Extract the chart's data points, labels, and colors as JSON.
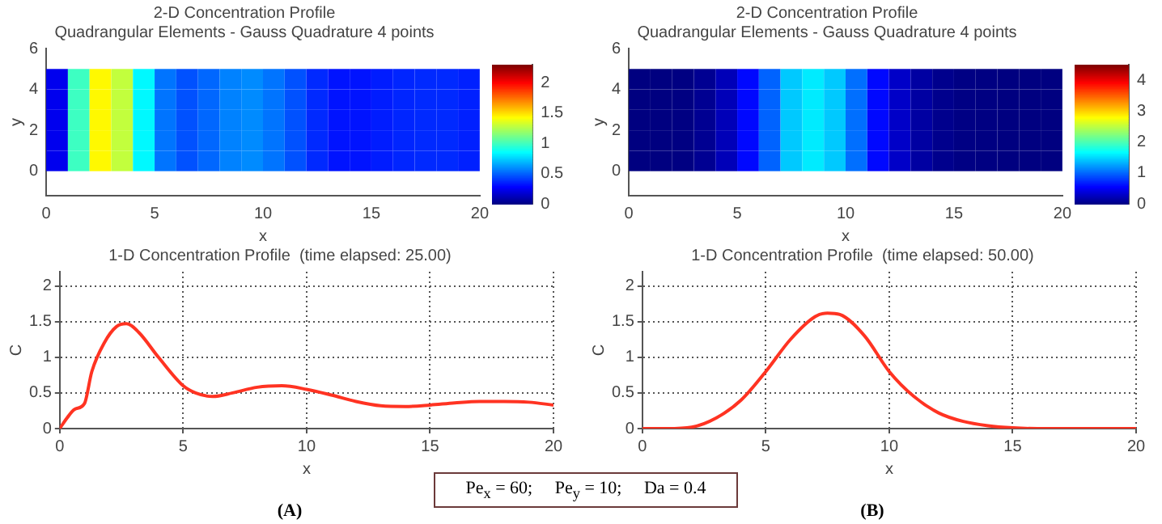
{
  "chart_data": [
    {
      "type": "heatmap",
      "title": "2-D Concentration Profile",
      "subtitle": "Quadrangular Elements - Gauss Quadrature 4 points",
      "xlabel": "x",
      "ylabel": "y",
      "x": [
        0.5,
        1.5,
        2.5,
        3.5,
        4.5,
        5.5,
        6.5,
        7.5,
        8.5,
        9.5,
        10.5,
        11.5,
        12.5,
        13.5,
        14.5,
        15.5,
        16.5,
        17.5,
        18.5,
        19.5
      ],
      "y": [
        4.5,
        3.5,
        2.5,
        1.5,
        0.5
      ],
      "cells": [
        [
          0.25,
          1.0,
          1.45,
          1.3,
          0.85,
          0.55,
          0.47,
          0.52,
          0.58,
          0.6,
          0.55,
          0.47,
          0.38,
          0.33,
          0.33,
          0.35,
          0.37,
          0.38,
          0.38,
          0.36
        ],
        [
          0.25,
          1.0,
          1.45,
          1.3,
          0.85,
          0.55,
          0.47,
          0.52,
          0.58,
          0.6,
          0.55,
          0.47,
          0.38,
          0.33,
          0.33,
          0.35,
          0.37,
          0.38,
          0.38,
          0.36
        ],
        [
          0.25,
          1.0,
          1.45,
          1.3,
          0.85,
          0.55,
          0.47,
          0.52,
          0.58,
          0.6,
          0.55,
          0.47,
          0.38,
          0.33,
          0.33,
          0.35,
          0.37,
          0.38,
          0.38,
          0.36
        ],
        [
          0.25,
          1.0,
          1.45,
          1.3,
          0.85,
          0.55,
          0.47,
          0.52,
          0.58,
          0.6,
          0.55,
          0.47,
          0.38,
          0.33,
          0.33,
          0.35,
          0.37,
          0.38,
          0.38,
          0.36
        ],
        [
          0.25,
          1.0,
          1.45,
          1.3,
          0.85,
          0.55,
          0.47,
          0.52,
          0.58,
          0.6,
          0.55,
          0.47,
          0.38,
          0.33,
          0.33,
          0.35,
          0.37,
          0.38,
          0.38,
          0.36
        ]
      ],
      "xlim": [
        0,
        20
      ],
      "xticks": [
        0,
        5,
        10,
        15,
        20
      ],
      "ylim": [
        -1.2,
        6
      ],
      "yticks": [
        0,
        2,
        4,
        6
      ],
      "clim": [
        0,
        2.3
      ],
      "cticks": [
        0,
        0.5,
        1,
        1.5,
        2
      ]
    },
    {
      "type": "heatmap",
      "title": "2-D Concentration Profile",
      "subtitle": "Quadrangular Elements - Gauss Quadrature 4 points",
      "xlabel": "x",
      "ylabel": "y",
      "x": [
        0.5,
        1.5,
        2.5,
        3.5,
        4.5,
        5.5,
        6.5,
        7.5,
        8.5,
        9.5,
        10.5,
        11.5,
        12.5,
        13.5,
        14.5,
        15.5,
        16.5,
        17.5,
        18.5,
        19.5
      ],
      "y": [
        4.5,
        3.5,
        2.5,
        1.5,
        0.5
      ],
      "cells": [
        [
          0,
          0,
          0.01,
          0.08,
          0.25,
          0.6,
          1.0,
          1.45,
          1.6,
          1.45,
          1.05,
          0.6,
          0.32,
          0.15,
          0.06,
          0.02,
          0.01,
          0,
          0,
          0
        ],
        [
          0,
          0,
          0.01,
          0.08,
          0.25,
          0.6,
          1.0,
          1.45,
          1.6,
          1.45,
          1.05,
          0.6,
          0.32,
          0.15,
          0.06,
          0.02,
          0.01,
          0,
          0,
          0
        ],
        [
          0,
          0,
          0.01,
          0.08,
          0.25,
          0.6,
          1.0,
          1.45,
          1.6,
          1.45,
          1.05,
          0.6,
          0.32,
          0.15,
          0.06,
          0.02,
          0.01,
          0,
          0,
          0
        ],
        [
          0,
          0,
          0.01,
          0.08,
          0.25,
          0.6,
          1.0,
          1.45,
          1.6,
          1.45,
          1.05,
          0.6,
          0.32,
          0.15,
          0.06,
          0.02,
          0.01,
          0,
          0,
          0
        ],
        [
          0,
          0,
          0.01,
          0.08,
          0.25,
          0.6,
          1.0,
          1.45,
          1.6,
          1.45,
          1.05,
          0.6,
          0.32,
          0.15,
          0.06,
          0.02,
          0.01,
          0,
          0,
          0
        ]
      ],
      "xlim": [
        0,
        20
      ],
      "xticks": [
        0,
        5,
        10,
        15,
        20
      ],
      "ylim": [
        -1.2,
        6
      ],
      "yticks": [
        0,
        2,
        4,
        6
      ],
      "clim": [
        0,
        4.5
      ],
      "cticks": [
        0,
        1,
        2,
        3,
        4
      ]
    },
    {
      "type": "line",
      "title": "1-D Concentration Profile  (time elapsed: 25.00)",
      "xlabel": "x",
      "ylabel": "C",
      "color": "#ff3322",
      "line_style": "solid",
      "grid": true,
      "x": [
        0,
        0.3,
        0.6,
        1,
        1.3,
        1.8,
        2.3,
        2.7,
        3.2,
        4,
        5,
        5.5,
        6.2,
        7,
        8,
        9,
        10,
        11,
        12,
        13,
        14,
        15,
        16,
        17,
        18,
        19,
        20
      ],
      "values": [
        0,
        0.15,
        0.27,
        0.35,
        0.8,
        1.2,
        1.43,
        1.47,
        1.35,
        1.0,
        0.6,
        0.5,
        0.45,
        0.5,
        0.58,
        0.6,
        0.55,
        0.47,
        0.38,
        0.32,
        0.31,
        0.33,
        0.36,
        0.38,
        0.38,
        0.37,
        0.33
      ],
      "xlim": [
        0,
        20
      ],
      "xticks": [
        0,
        5,
        10,
        15,
        20
      ],
      "ylim": [
        0,
        2.2
      ],
      "yticks": [
        0,
        0.5,
        1,
        1.5,
        2
      ],
      "annotations": [
        "(A)",
        "Pe$_{x}$ = 60;     Pe$_{y}$ = 10;     Da = 0.4"
      ]
    },
    {
      "type": "line",
      "title": "1-D Concentration Profile  (time elapsed: 50.00)",
      "xlabel": "x",
      "ylabel": "C",
      "color": "#ff3322",
      "line_style": "solid",
      "grid": true,
      "x": [
        0,
        1,
        2,
        3,
        4,
        5,
        6,
        7,
        7.5,
        8,
        9,
        10,
        11,
        12,
        13,
        14,
        15,
        16,
        20
      ],
      "values": [
        0,
        0,
        0.02,
        0.15,
        0.4,
        0.8,
        1.25,
        1.57,
        1.62,
        1.6,
        1.3,
        0.8,
        0.45,
        0.22,
        0.1,
        0.04,
        0.01,
        0,
        0
      ],
      "xlim": [
        0,
        20
      ],
      "xticks": [
        0,
        5,
        10,
        15,
        20
      ],
      "ylim": [
        0,
        2.2
      ],
      "yticks": [
        0,
        0.5,
        1,
        1.5,
        2
      ],
      "annotations": [
        "(B)"
      ]
    }
  ]
}
